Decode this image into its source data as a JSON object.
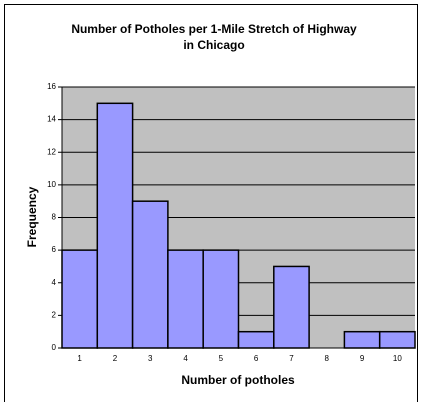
{
  "chart_data": {
    "type": "bar",
    "title": [
      "Number of Potholes per 1-Mile Stretch of Highway",
      "in Chicago"
    ],
    "x_label": "Number of potholes",
    "y_label": "Frequency",
    "categories": [
      "1",
      "2",
      "3",
      "4",
      "5",
      "6",
      "7",
      "8",
      "9",
      "10"
    ],
    "values": [
      6,
      15,
      9,
      6,
      6,
      1,
      5,
      0,
      1,
      1
    ],
    "color": "#9999ff",
    "ylim": [
      0,
      16
    ],
    "yticks": [
      0,
      2,
      4,
      6,
      8,
      10,
      12,
      14,
      16
    ],
    "grid": true
  }
}
